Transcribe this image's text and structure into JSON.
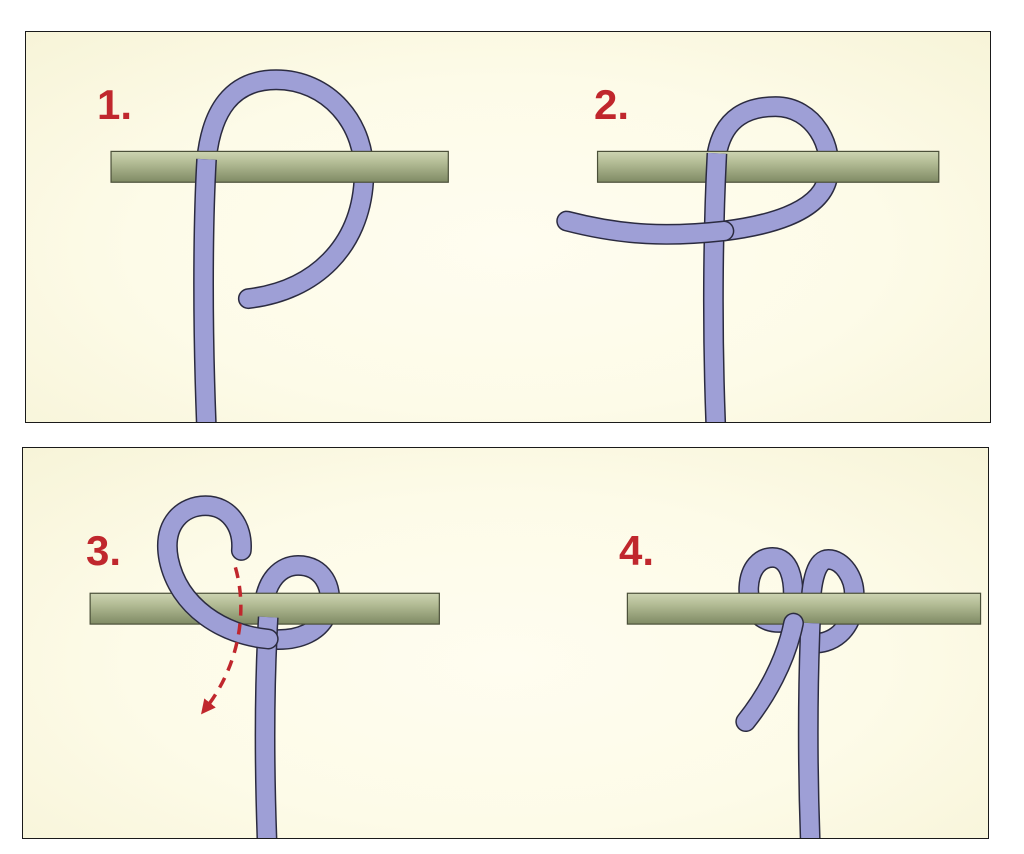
{
  "steps": [
    {
      "label": "1."
    },
    {
      "label": "2."
    },
    {
      "label": "3."
    },
    {
      "label": "4."
    }
  ],
  "colors": {
    "rope": "#9e9fd6",
    "rope_outline": "#2b2b40",
    "rod": "#9ea882",
    "arrow": "#c0272d",
    "label": "#c0272d",
    "background": "#fdfbe8"
  }
}
